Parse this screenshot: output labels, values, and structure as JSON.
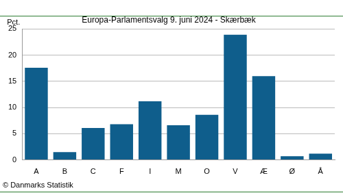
{
  "chart_data": {
    "type": "bar",
    "title": "Europa-Parlamentsvalg 9. juni 2024 - Skærbæk",
    "ylabel": "Pct.",
    "source": "© Danmarks Statistik",
    "categories": [
      "A",
      "B",
      "C",
      "F",
      "I",
      "M",
      "O",
      "V",
      "Æ",
      "Ø",
      "Å"
    ],
    "values": [
      17.6,
      1.5,
      6.1,
      6.8,
      11.2,
      6.6,
      8.6,
      23.9,
      16.0,
      0.7,
      1.2
    ],
    "color": "#0f5e8c",
    "ylim": [
      0,
      25
    ],
    "yticks": [
      0,
      5,
      10,
      15,
      20,
      25
    ],
    "grid": true
  }
}
